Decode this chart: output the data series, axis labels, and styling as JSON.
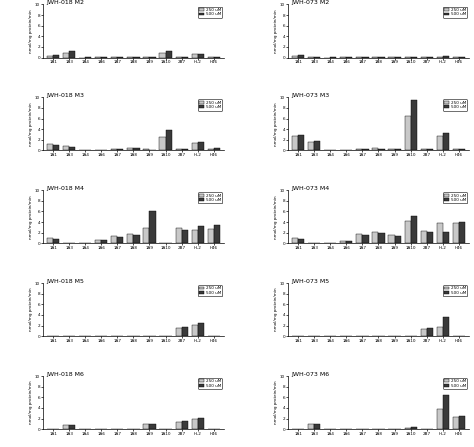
{
  "categories": [
    "1A1",
    "1A3",
    "1A4",
    "1A6",
    "1A7",
    "1A8",
    "1A9",
    "1A10",
    "2B7",
    "HL2",
    "H46"
  ],
  "ylim": [
    0,
    10
  ],
  "yticks": [
    0,
    2,
    4,
    6,
    8,
    10
  ],
  "ylabel": "nmol/mg protein/min",
  "color_250": "#c8c8c8",
  "color_500": "#3a3a3a",
  "bar_width": 0.38,
  "legend_labels": [
    "250 uM",
    "500 uM"
  ],
  "panels": [
    {
      "title": "JWH-018 M2",
      "vals_250": [
        0.35,
        0.8,
        0.0,
        0.05,
        0.05,
        0.1,
        0.1,
        0.9,
        0.05,
        0.65,
        0.05
      ],
      "vals_500": [
        0.4,
        1.3,
        0.05,
        0.05,
        0.05,
        0.1,
        0.1,
        1.2,
        0.05,
        0.7,
        0.05
      ]
    },
    {
      "title": "JWH-073 M2",
      "vals_250": [
        0.35,
        0.1,
        0.0,
        0.05,
        0.05,
        0.05,
        0.05,
        0.1,
        0.05,
        0.05,
        0.05
      ],
      "vals_500": [
        0.5,
        0.15,
        0.05,
        0.05,
        0.05,
        0.05,
        0.05,
        0.15,
        0.05,
        0.3,
        0.05
      ]
    },
    {
      "title": "JWH-018 M3",
      "vals_250": [
        1.3,
        0.8,
        0.0,
        0.05,
        0.3,
        0.5,
        0.2,
        2.5,
        0.2,
        1.4,
        0.3
      ],
      "vals_500": [
        1.0,
        0.7,
        0.05,
        0.05,
        0.2,
        0.4,
        0.15,
        3.8,
        0.2,
        1.6,
        0.5
      ]
    },
    {
      "title": "JWH-073 M3",
      "vals_250": [
        2.8,
        1.5,
        0.0,
        0.05,
        0.3,
        0.4,
        0.3,
        6.5,
        0.3,
        2.8,
        0.2
      ],
      "vals_500": [
        2.9,
        1.7,
        0.05,
        0.05,
        0.2,
        0.3,
        0.25,
        9.5,
        0.3,
        3.2,
        0.3
      ]
    },
    {
      "title": "JWH-018 M4",
      "vals_250": [
        1.0,
        0.05,
        0.0,
        0.7,
        1.4,
        1.8,
        2.9,
        0.05,
        2.8,
        2.5,
        2.7
      ],
      "vals_500": [
        0.9,
        0.05,
        0.05,
        0.6,
        1.2,
        1.5,
        6.0,
        0.05,
        2.6,
        3.2,
        3.5
      ]
    },
    {
      "title": "JWH-073 M4",
      "vals_250": [
        1.0,
        0.05,
        0.0,
        0.5,
        1.8,
        2.1,
        1.6,
        4.2,
        2.3,
        3.8,
        3.9
      ],
      "vals_500": [
        0.9,
        0.05,
        0.05,
        0.4,
        1.5,
        1.9,
        1.4,
        5.2,
        2.2,
        2.2,
        4.1
      ]
    },
    {
      "title": "JWH-018 M5",
      "vals_250": [
        0.05,
        0.05,
        0.0,
        0.05,
        0.05,
        0.05,
        0.05,
        0.05,
        1.5,
        2.2,
        0.05
      ],
      "vals_500": [
        0.05,
        0.05,
        0.05,
        0.05,
        0.05,
        0.05,
        0.05,
        0.05,
        1.7,
        2.5,
        0.05
      ]
    },
    {
      "title": "JWH-073 M5",
      "vals_250": [
        0.05,
        0.05,
        0.0,
        0.05,
        0.05,
        0.05,
        0.05,
        0.05,
        1.4,
        1.8,
        0.05
      ],
      "vals_500": [
        0.05,
        0.05,
        0.05,
        0.05,
        0.05,
        0.05,
        0.05,
        0.05,
        1.5,
        3.6,
        0.05
      ]
    },
    {
      "title": "JWH-018 M6",
      "vals_250": [
        0.05,
        0.7,
        0.0,
        0.05,
        0.05,
        0.05,
        0.9,
        0.05,
        1.3,
        1.9,
        0.05
      ],
      "vals_500": [
        0.05,
        0.8,
        0.05,
        0.05,
        0.05,
        0.05,
        1.0,
        0.05,
        1.5,
        2.1,
        0.05
      ]
    },
    {
      "title": "JWH-073 M6",
      "vals_250": [
        0.05,
        1.0,
        0.0,
        0.05,
        0.05,
        0.05,
        0.05,
        0.3,
        0.05,
        3.8,
        2.3
      ],
      "vals_500": [
        0.05,
        0.9,
        0.05,
        0.05,
        0.05,
        0.05,
        0.05,
        0.4,
        0.05,
        6.5,
        2.5
      ]
    }
  ]
}
